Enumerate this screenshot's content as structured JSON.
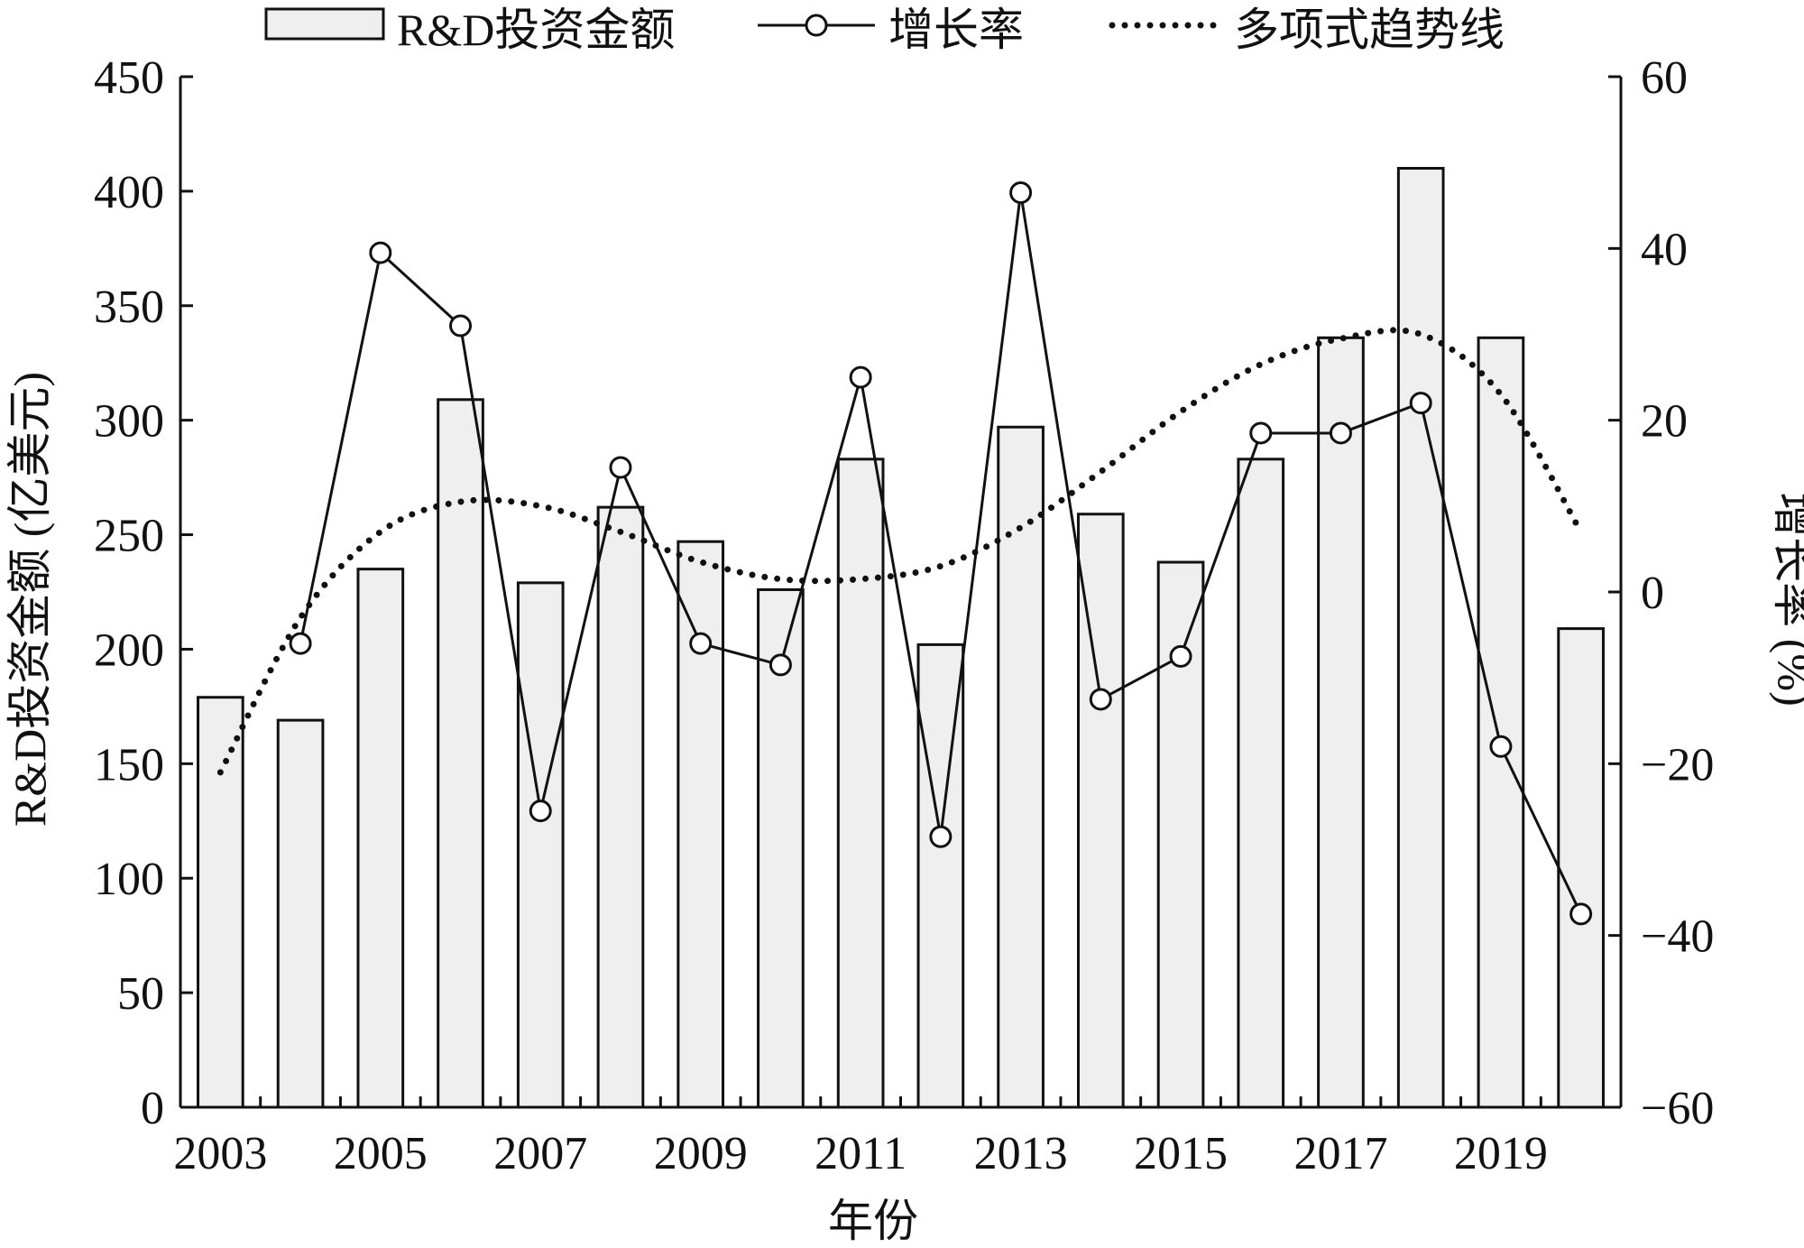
{
  "chart_data": {
    "type": "bar",
    "legend": {
      "placement": "top",
      "items": [
        {
          "label": "R&D投资金额",
          "kind": "bar"
        },
        {
          "label": "增长率",
          "kind": "line-marker"
        },
        {
          "label": "多项式趋势线",
          "kind": "dotted"
        }
      ]
    },
    "xlabel": "年份",
    "ylabel": "R&D投资金额 (亿美元)",
    "y2label": "增长率 (%)",
    "ylim": [
      0,
      450
    ],
    "y2lim": [
      -60,
      60
    ],
    "yticks": [
      "0",
      "50",
      "100",
      "150",
      "200",
      "250",
      "300",
      "350",
      "400",
      "450"
    ],
    "y2ticks": [
      "−60",
      "−40",
      "−20",
      "0",
      "20",
      "40",
      "60"
    ],
    "categories": [
      2003,
      2004,
      2005,
      2006,
      2007,
      2008,
      2009,
      2010,
      2011,
      2012,
      2013,
      2014,
      2015,
      2016,
      2017,
      2018,
      2019,
      2020
    ],
    "xtick_labels": [
      "2003",
      "2005",
      "2007",
      "2009",
      "2011",
      "2013",
      "2015",
      "2017",
      "2019"
    ],
    "grid": false,
    "colors": {
      "bar_fill": "#efefef",
      "stroke": "#111111"
    },
    "series": [
      {
        "name": "R&D投资金额",
        "type": "bar",
        "axis": "left",
        "values": [
          179,
          169,
          235,
          309,
          229,
          262,
          247,
          226,
          283,
          202,
          297,
          259,
          238,
          283,
          336,
          410,
          336,
          209
        ]
      },
      {
        "name": "增长率",
        "type": "line",
        "axis": "right",
        "values": [
          null,
          -6,
          39.5,
          31,
          -25.5,
          14.5,
          -6,
          -8.5,
          25,
          -28.5,
          46.5,
          -12.5,
          -7.5,
          18.5,
          18.5,
          22,
          -18,
          -37.5
        ]
      },
      {
        "name": "多项式趋势线",
        "type": "trendline",
        "axis": "right",
        "values": [
          -21,
          -3,
          7,
          10.5,
          10,
          7,
          3.5,
          1.5,
          1.5,
          3,
          7.5,
          14,
          21,
          26.5,
          29.5,
          30,
          23,
          7
        ]
      }
    ]
  }
}
